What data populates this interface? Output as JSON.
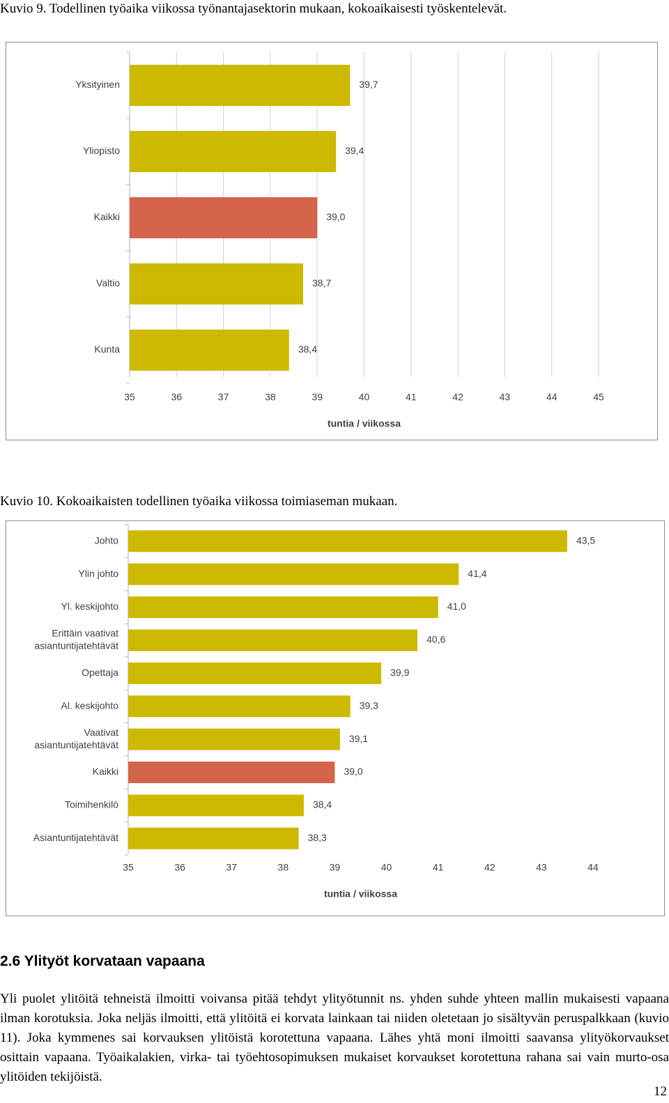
{
  "chart_data": [
    {
      "type": "bar",
      "orientation": "horizontal",
      "caption": "Kuvio 9. Todellinen työaika viikossa työnantajasektorin mukaan, kokoaikaisesti työskentelevät.",
      "categories": [
        "Yksityinen",
        "Yliopisto",
        "Kaikki",
        "Valtio",
        "Kunta"
      ],
      "values": [
        39.7,
        39.4,
        39.0,
        38.7,
        38.4
      ],
      "value_labels": [
        "39,7",
        "39,4",
        "39,0",
        "38,7",
        "38,4"
      ],
      "highlight": "Kaikki",
      "xlabel": "tuntia / viikossa",
      "xlim": [
        35,
        45
      ],
      "xticks": [
        "35",
        "36",
        "37",
        "38",
        "39",
        "40",
        "41",
        "42",
        "43",
        "44",
        "45"
      ],
      "colors": {
        "bar": "#CDB901",
        "highlight": "#D4644B"
      },
      "grid": true
    },
    {
      "type": "bar",
      "orientation": "horizontal",
      "caption": "Kuvio 10. Kokoaikaisten todellinen työaika viikossa toimiaseman mukaan.",
      "categories": [
        [
          "Johto"
        ],
        [
          "Ylin johto"
        ],
        [
          "Yl. keskijohto"
        ],
        [
          "Erittäin vaativat",
          "asiantuntijatehtävät"
        ],
        [
          "Opettaja"
        ],
        [
          "Al. keskijohto"
        ],
        [
          "Vaativat",
          "asiantuntijatehtävät"
        ],
        [
          "Kaikki"
        ],
        [
          "Toimihenkilö"
        ],
        [
          "Asiantuntijatehtävät"
        ]
      ],
      "values": [
        43.5,
        41.4,
        41.0,
        40.6,
        39.9,
        39.3,
        39.1,
        39.0,
        38.4,
        38.3
      ],
      "value_labels": [
        "43,5",
        "41,4",
        "41,0",
        "40,6",
        "39,9",
        "39,3",
        "39,1",
        "39,0",
        "38,4",
        "38,3"
      ],
      "highlight": "Kaikki",
      "xlabel": "tuntia / viikossa",
      "xlim": [
        35,
        44
      ],
      "xticks": [
        "35",
        "36",
        "37",
        "38",
        "39",
        "40",
        "41",
        "42",
        "43",
        "44"
      ],
      "colors": {
        "bar": "#CDB901",
        "highlight": "#D4644B"
      },
      "grid": false
    }
  ],
  "section": {
    "heading": "2.6 Ylityöt korvataan vapaana",
    "body": "Yli puolet ylitöitä tehneistä ilmoitti voivansa pitää tehdyt ylityötunnit ns. yhden suhde yhteen mallin mukaisesti vapaana ilman korotuksia. Joka neljäs ilmoitti, että ylitöitä ei korvata lainkaan tai niiden oletetaan jo sisältyvän peruspalkkaan (kuvio 11). Joka kymmenes sai korvauksen ylitöistä korotettuna vapaana. Lähes yhtä moni ilmoitti saavansa ylityökorvaukset osittain vapaana. Työaikalakien, virka- tai työehtosopimuksen mukaiset korvaukset korotettuna rahana sai vain murto-osa ylitöiden tekijöistä."
  },
  "page_number": "12"
}
